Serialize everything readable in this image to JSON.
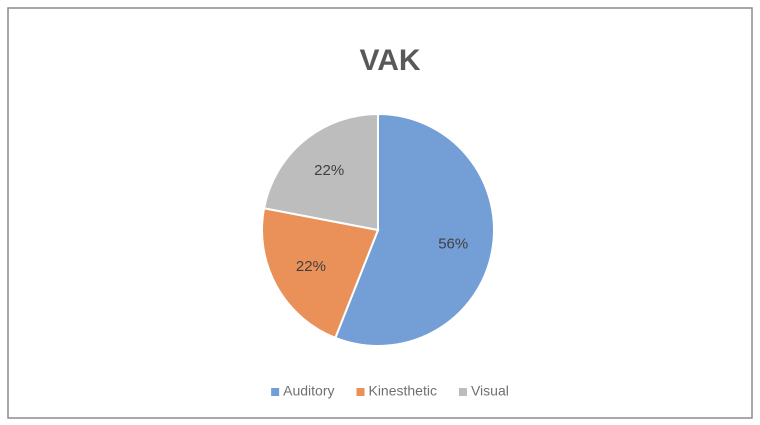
{
  "chart_data": {
    "type": "pie",
    "title": "VAK",
    "categories": [
      "Auditory",
      "Kinesthetic",
      "Visual"
    ],
    "values": [
      56,
      22,
      22
    ],
    "value_labels": [
      "56%",
      "22%",
      "22%"
    ],
    "colors": [
      "#739fd6",
      "#ea9159",
      "#bdbdbd"
    ],
    "legend": "bottom"
  }
}
